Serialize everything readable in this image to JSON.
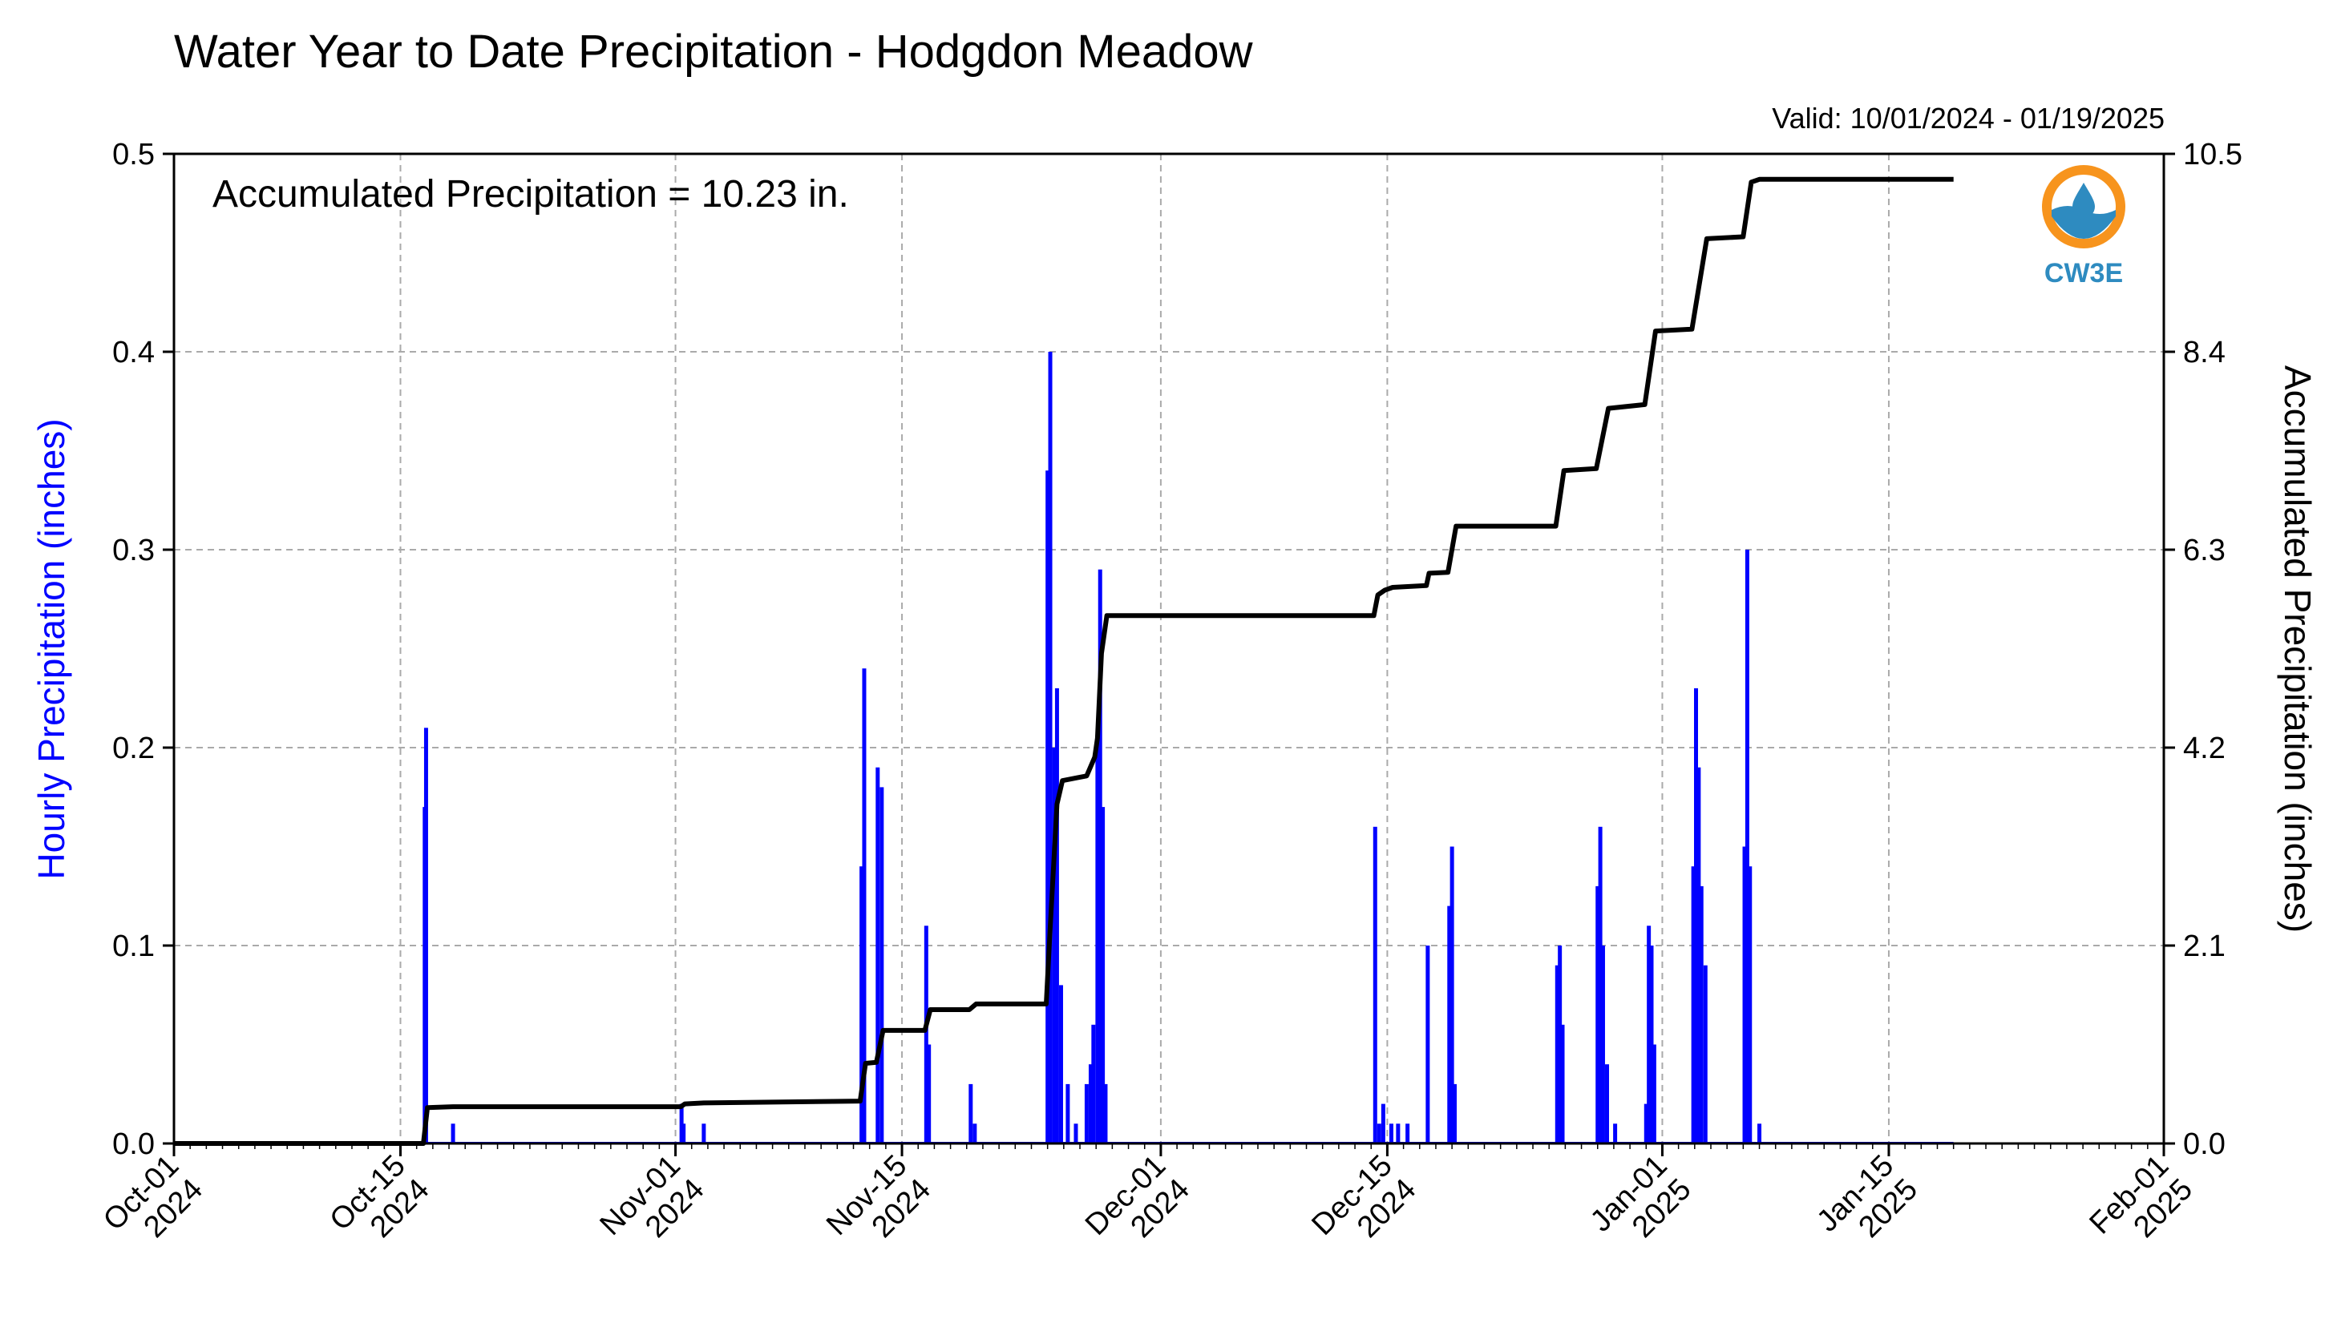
{
  "chart_data": {
    "type": "bar",
    "title": "Water Year to Date Precipitation - Hodgdon Meadow",
    "subtitle": "Valid: 10/01/2024 - 01/19/2025",
    "annotation": "Accumulated Precipitation = 10.23 in.",
    "logo_text": "CW3E",
    "ylabel": "Hourly Precipitation (inches)",
    "ylabel_right": "Accumulated Precipitation (inches)",
    "ylim": [
      0,
      0.5
    ],
    "ylim_right": [
      0,
      10.5
    ],
    "xlim": [
      "2024-10-01",
      "2025-02-01"
    ],
    "grid": true,
    "colors": {
      "hourly": "#0000ff",
      "accumulated": "#000000",
      "grid": "#aaaaaa",
      "logo_orange": "#f7941d",
      "logo_blue": "#2e8bc0"
    },
    "y_ticks": [
      "0.0",
      "0.1",
      "0.2",
      "0.3",
      "0.4",
      "0.5"
    ],
    "y_tick_values": [
      0,
      0.1,
      0.2,
      0.3,
      0.4,
      0.5
    ],
    "y_ticks_right": [
      "0.0",
      "2.1",
      "4.2",
      "6.3",
      "8.4",
      "10.5"
    ],
    "y_tick_values_right": [
      0,
      2.1,
      4.2,
      6.3,
      8.4,
      10.5
    ],
    "x_ticks": [
      {
        "date": "2024-10-01",
        "label1": "Oct-01",
        "label2": "2024"
      },
      {
        "date": "2024-10-15",
        "label1": "Oct-15",
        "label2": "2024"
      },
      {
        "date": "2024-11-01",
        "label1": "Nov-01",
        "label2": "2024"
      },
      {
        "date": "2024-11-15",
        "label1": "Nov-15",
        "label2": "2024"
      },
      {
        "date": "2024-12-01",
        "label1": "Dec-01",
        "label2": "2024"
      },
      {
        "date": "2024-12-15",
        "label1": "Dec-15",
        "label2": "2024"
      },
      {
        "date": "2025-01-01",
        "label1": "Jan-01",
        "label2": "2025"
      },
      {
        "date": "2025-01-15",
        "label1": "Jan-15",
        "label2": "2025"
      },
      {
        "date": "2025-02-01",
        "label1": "Feb-01",
        "label2": "2025"
      }
    ],
    "series": [
      {
        "kind": "bar",
        "unit": "inches",
        "points": [
          {
            "x": "2024-10-16 12:00",
            "y": 0.17
          },
          {
            "x": "2024-10-16 14:00",
            "y": 0.21
          },
          {
            "x": "2024-10-18 06:00",
            "y": 0.01
          },
          {
            "x": "2024-11-01 09:00",
            "y": 0.02
          },
          {
            "x": "2024-11-01 12:00",
            "y": 0.01
          },
          {
            "x": "2024-11-02 18:00",
            "y": 0.01
          },
          {
            "x": "2024-11-12 12:00",
            "y": 0.14
          },
          {
            "x": "2024-11-12 16:00",
            "y": 0.24
          },
          {
            "x": "2024-11-13 12:00",
            "y": 0.19
          },
          {
            "x": "2024-11-13 18:00",
            "y": 0.18
          },
          {
            "x": "2024-11-16 12:00",
            "y": 0.11
          },
          {
            "x": "2024-11-16 16:00",
            "y": 0.05
          },
          {
            "x": "2024-11-19 06:00",
            "y": 0.03
          },
          {
            "x": "2024-11-19 12:00",
            "y": 0.01
          },
          {
            "x": "2024-11-24 00:00",
            "y": 0.34
          },
          {
            "x": "2024-11-24 04:00",
            "y": 0.4
          },
          {
            "x": "2024-11-24 10:00",
            "y": 0.2
          },
          {
            "x": "2024-11-24 14:00",
            "y": 0.23
          },
          {
            "x": "2024-11-24 20:00",
            "y": 0.08
          },
          {
            "x": "2024-11-25 06:00",
            "y": 0.03
          },
          {
            "x": "2024-11-25 18:00",
            "y": 0.01
          },
          {
            "x": "2024-11-26 10:00",
            "y": 0.03
          },
          {
            "x": "2024-11-26 16:00",
            "y": 0.04
          },
          {
            "x": "2024-11-26 20:00",
            "y": 0.06
          },
          {
            "x": "2024-11-27 02:00",
            "y": 0.2
          },
          {
            "x": "2024-11-27 06:00",
            "y": 0.29
          },
          {
            "x": "2024-11-27 10:00",
            "y": 0.17
          },
          {
            "x": "2024-11-27 14:00",
            "y": 0.03
          },
          {
            "x": "2024-12-14 06:00",
            "y": 0.16
          },
          {
            "x": "2024-12-14 12:00",
            "y": 0.01
          },
          {
            "x": "2024-12-14 18:00",
            "y": 0.02
          },
          {
            "x": "2024-12-15 06:00",
            "y": 0.01
          },
          {
            "x": "2024-12-15 16:00",
            "y": 0.01
          },
          {
            "x": "2024-12-16 06:00",
            "y": 0.01
          },
          {
            "x": "2024-12-17 12:00",
            "y": 0.1
          },
          {
            "x": "2024-12-18 20:00",
            "y": 0.12
          },
          {
            "x": "2024-12-19 00:00",
            "y": 0.15
          },
          {
            "x": "2024-12-19 04:00",
            "y": 0.03
          },
          {
            "x": "2024-12-25 12:00",
            "y": 0.09
          },
          {
            "x": "2024-12-25 16:00",
            "y": 0.1
          },
          {
            "x": "2024-12-25 20:00",
            "y": 0.06
          },
          {
            "x": "2024-12-28 00:00",
            "y": 0.13
          },
          {
            "x": "2024-12-28 04:00",
            "y": 0.16
          },
          {
            "x": "2024-12-28 08:00",
            "y": 0.1
          },
          {
            "x": "2024-12-28 14:00",
            "y": 0.04
          },
          {
            "x": "2024-12-29 02:00",
            "y": 0.01
          },
          {
            "x": "2024-12-31 00:00",
            "y": 0.02
          },
          {
            "x": "2024-12-31 04:00",
            "y": 0.11
          },
          {
            "x": "2024-12-31 08:00",
            "y": 0.1
          },
          {
            "x": "2024-12-31 12:00",
            "y": 0.05
          },
          {
            "x": "2025-01-02 22:00",
            "y": 0.14
          },
          {
            "x": "2025-01-03 02:00",
            "y": 0.23
          },
          {
            "x": "2025-01-03 06:00",
            "y": 0.19
          },
          {
            "x": "2025-01-03 10:00",
            "y": 0.13
          },
          {
            "x": "2025-01-03 16:00",
            "y": 0.09
          },
          {
            "x": "2025-01-06 02:00",
            "y": 0.15
          },
          {
            "x": "2025-01-06 06:00",
            "y": 0.3
          },
          {
            "x": "2025-01-06 10:00",
            "y": 0.14
          },
          {
            "x": "2025-01-07 00:00",
            "y": 0.01
          }
        ]
      },
      {
        "kind": "line",
        "unit": "inches",
        "points": [
          {
            "x": "2024-10-01 00:00",
            "y": 0.0
          },
          {
            "x": "2024-10-16 10:00",
            "y": 0.0
          },
          {
            "x": "2024-10-16 16:00",
            "y": 0.38
          },
          {
            "x": "2024-10-18 06:00",
            "y": 0.39
          },
          {
            "x": "2024-11-01 08:00",
            "y": 0.39
          },
          {
            "x": "2024-11-01 14:00",
            "y": 0.42
          },
          {
            "x": "2024-11-02 18:00",
            "y": 0.43
          },
          {
            "x": "2024-11-12 10:00",
            "y": 0.45
          },
          {
            "x": "2024-11-12 18:00",
            "y": 0.85
          },
          {
            "x": "2024-11-13 10:00",
            "y": 0.86
          },
          {
            "x": "2024-11-13 20:00",
            "y": 1.2
          },
          {
            "x": "2024-11-16 10:00",
            "y": 1.2
          },
          {
            "x": "2024-11-16 18:00",
            "y": 1.42
          },
          {
            "x": "2024-11-19 04:00",
            "y": 1.42
          },
          {
            "x": "2024-11-19 14:00",
            "y": 1.48
          },
          {
            "x": "2024-11-23 22:00",
            "y": 1.48
          },
          {
            "x": "2024-11-24 04:00",
            "y": 2.3
          },
          {
            "x": "2024-11-24 14:00",
            "y": 3.6
          },
          {
            "x": "2024-11-24 22:00",
            "y": 3.85
          },
          {
            "x": "2024-11-25 20:00",
            "y": 3.88
          },
          {
            "x": "2024-11-26 10:00",
            "y": 3.9
          },
          {
            "x": "2024-11-26 22:00",
            "y": 4.1
          },
          {
            "x": "2024-11-27 02:00",
            "y": 4.3
          },
          {
            "x": "2024-11-27 08:00",
            "y": 5.2
          },
          {
            "x": "2024-11-27 16:00",
            "y": 5.6
          },
          {
            "x": "2024-12-14 04:00",
            "y": 5.6
          },
          {
            "x": "2024-12-14 10:00",
            "y": 5.82
          },
          {
            "x": "2024-12-14 20:00",
            "y": 5.87
          },
          {
            "x": "2024-12-15 08:00",
            "y": 5.9
          },
          {
            "x": "2024-12-17 10:00",
            "y": 5.92
          },
          {
            "x": "2024-12-17 14:00",
            "y": 6.05
          },
          {
            "x": "2024-12-18 18:00",
            "y": 6.06
          },
          {
            "x": "2024-12-19 06:00",
            "y": 6.55
          },
          {
            "x": "2024-12-25 10:00",
            "y": 6.55
          },
          {
            "x": "2024-12-25 22:00",
            "y": 7.14
          },
          {
            "x": "2024-12-27 22:00",
            "y": 7.16
          },
          {
            "x": "2024-12-28 16:00",
            "y": 7.8
          },
          {
            "x": "2024-12-30 22:00",
            "y": 7.84
          },
          {
            "x": "2024-12-31 14:00",
            "y": 8.62
          },
          {
            "x": "2025-01-02 20:00",
            "y": 8.64
          },
          {
            "x": "2025-01-03 18:00",
            "y": 9.6
          },
          {
            "x": "2025-01-06 00:00",
            "y": 9.62
          },
          {
            "x": "2025-01-06 12:00",
            "y": 10.2
          },
          {
            "x": "2025-01-07 00:00",
            "y": 10.23
          },
          {
            "x": "2025-01-19 00:00",
            "y": 10.23
          }
        ]
      }
    ]
  }
}
